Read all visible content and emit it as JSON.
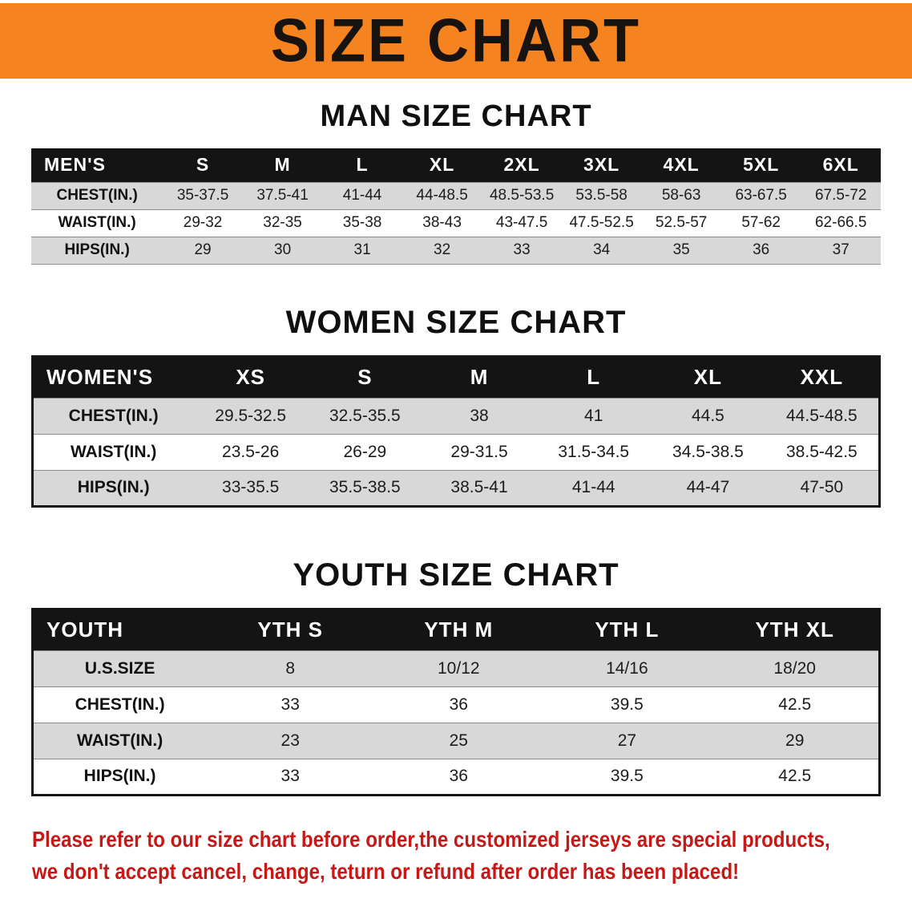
{
  "banner": {
    "title": "SIZE CHART"
  },
  "colors": {
    "banner-bg": "#F5831F",
    "banner-text": "#161310",
    "header-bg": "#141414",
    "header-text": "#FFFFFF",
    "stripe": "#D8D8D8",
    "row-white": "#FFFFFF",
    "text": "#1C1C1C",
    "note": "#C81717"
  },
  "men": {
    "heading": "MAN SIZE CHART",
    "table": {
      "header": [
        "MEN'S",
        "S",
        "M",
        "L",
        "XL",
        "2XL",
        "3XL",
        "4XL",
        "5XL",
        "6XL"
      ],
      "rows": [
        [
          "CHEST(IN.)",
          "35-37.5",
          "37.5-41",
          "41-44",
          "44-48.5",
          "48.5-53.5",
          "53.5-58",
          "58-63",
          "63-67.5",
          "67.5-72"
        ],
        [
          "WAIST(IN.)",
          "29-32",
          "32-35",
          "35-38",
          "38-43",
          "43-47.5",
          "47.5-52.5",
          "52.5-57",
          "57-62",
          "62-66.5"
        ],
        [
          "HIPS(IN.)",
          "29",
          "30",
          "31",
          "32",
          "33",
          "34",
          "35",
          "36",
          "37"
        ]
      ]
    }
  },
  "women": {
    "heading": "WOMEN SIZE CHART",
    "table": {
      "header": [
        "WOMEN'S",
        "XS",
        "S",
        "M",
        "L",
        "XL",
        "XXL"
      ],
      "rows": [
        [
          "CHEST(IN.)",
          "29.5-32.5",
          "32.5-35.5",
          "38",
          "41",
          "44.5",
          "44.5-48.5"
        ],
        [
          "WAIST(IN.)",
          "23.5-26",
          "26-29",
          "29-31.5",
          "31.5-34.5",
          "34.5-38.5",
          "38.5-42.5"
        ],
        [
          "HIPS(IN.)",
          "33-35.5",
          "35.5-38.5",
          "38.5-41",
          "41-44",
          "44-47",
          "47-50"
        ]
      ]
    }
  },
  "youth": {
    "heading": "YOUTH SIZE CHART",
    "table": {
      "header": [
        "YOUTH",
        "YTH S",
        "YTH M",
        "YTH L",
        "YTH XL"
      ],
      "rows": [
        [
          "U.S.SIZE",
          "8",
          "10/12",
          "14/16",
          "18/20"
        ],
        [
          "CHEST(IN.)",
          "33",
          "36",
          "39.5",
          "42.5"
        ],
        [
          "WAIST(IN.)",
          "23",
          "25",
          "27",
          "29"
        ],
        [
          "HIPS(IN.)",
          "33",
          "36",
          "39.5",
          "42.5"
        ]
      ]
    }
  },
  "note": {
    "line1": "Please refer to our size chart before order,the customized jerseys are special products,",
    "line2": "we don't accept cancel, change, teturn or refund after order has been placed!"
  }
}
